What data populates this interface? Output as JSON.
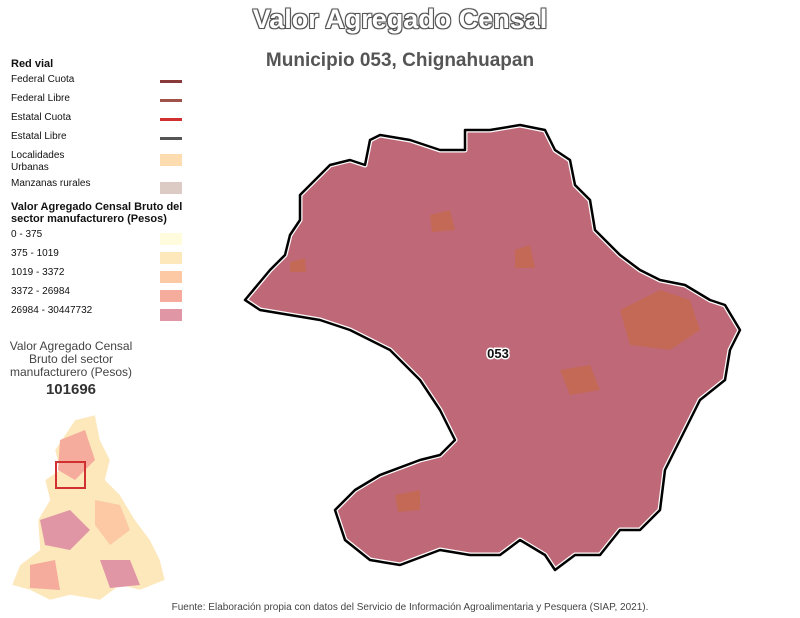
{
  "title": "Valor Agregado Censal",
  "subtitle": "Municipio 053, Chignahuapan",
  "legend": {
    "road_title": "Red vial",
    "roads": [
      {
        "label": "Federal Cuota",
        "color": "#8b3a3a"
      },
      {
        "label": "Federal Libre",
        "color": "#a0524a"
      },
      {
        "label": "Estatal Cuota",
        "color": "#d03030"
      },
      {
        "label": "Estatal Libre",
        "color": "#555555"
      }
    ],
    "areas": [
      {
        "label": "Localidades Urbanas",
        "color": "#fddcb0"
      },
      {
        "label": "Manzanas rurales",
        "color": "#dccbc4"
      }
    ],
    "class_title": "Valor Agregado Censal Bruto del sector manufacturero (Pesos)",
    "classes": [
      {
        "label": "0 - 375",
        "color": "#fefcdc"
      },
      {
        "label": "375 - 1019",
        "color": "#fde8bc"
      },
      {
        "label": "1019 - 3372",
        "color": "#fcc9a4"
      },
      {
        "label": "3372 - 26984",
        "color": "#f6ac9c"
      },
      {
        "label": "26984 - 30447732",
        "color": "#e096a4"
      }
    ]
  },
  "stat": {
    "label": "Valor Agregado Censal Bruto del sector manufacturero (Pesos)",
    "value": "101696"
  },
  "map": {
    "municipality_label": "053",
    "fill": "#b85868"
  },
  "source": "Fuente: Elaboración propia con datos del Servicio de Información Agroalimentaria y Pesquera (SIAP, 2021)."
}
